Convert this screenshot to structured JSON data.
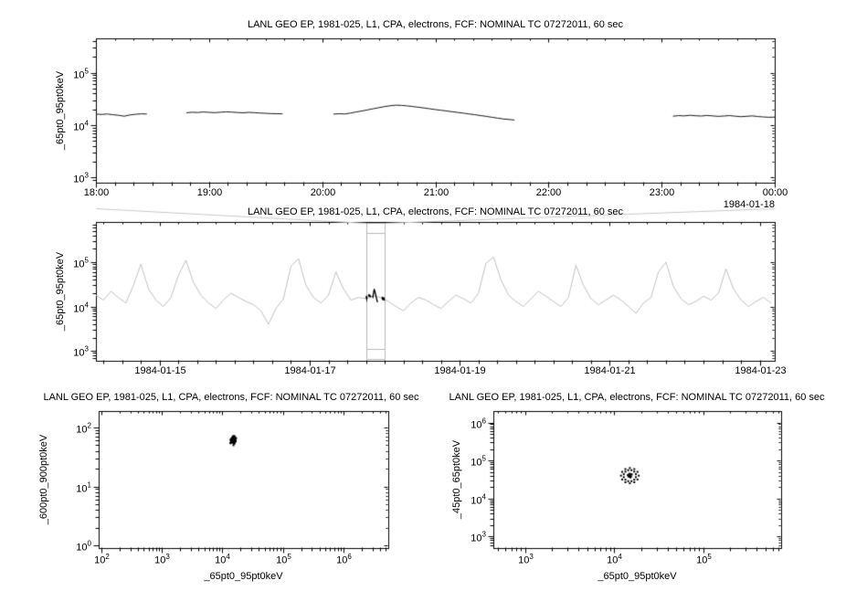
{
  "chart_data": [
    {
      "type": "line",
      "title": "LANL GEO EP, 1981-025, L1, CPA, electrons, FCF: NOMINAL TC 07272011, 60 sec",
      "ylabel": "_65pt0_95pt0keV",
      "corner_label": "1984-01-18",
      "line_color": "#161616",
      "x_axis": {
        "scale": "linear",
        "min": 18,
        "max": 24,
        "minor_step": 0.1666667,
        "ticks": [
          {
            "v": 18,
            "label": "18:00"
          },
          {
            "v": 19,
            "label": "19:00"
          },
          {
            "v": 20,
            "label": "20:00"
          },
          {
            "v": 21,
            "label": "21:00"
          },
          {
            "v": 22,
            "label": "22:00"
          },
          {
            "v": 23,
            "label": "23:00"
          },
          {
            "v": 24,
            "label": "00:00"
          }
        ]
      },
      "y_axis": {
        "scale": "log",
        "min": 800,
        "max": 450000,
        "tick_exps": [
          3,
          4,
          5
        ]
      },
      "segments": [
        [
          [
            18.0,
            16200
          ],
          [
            18.05,
            16000
          ],
          [
            18.1,
            16300
          ],
          [
            18.15,
            15800
          ],
          [
            18.2,
            15400
          ],
          [
            18.25,
            14800
          ],
          [
            18.3,
            15600
          ],
          [
            18.35,
            16100
          ],
          [
            18.4,
            16400
          ],
          [
            18.45,
            16300
          ]
        ],
        [
          [
            18.8,
            17200
          ],
          [
            18.85,
            17600
          ],
          [
            18.9,
            17400
          ],
          [
            18.95,
            17800
          ],
          [
            19.0,
            17500
          ],
          [
            19.05,
            17300
          ],
          [
            19.1,
            17600
          ],
          [
            19.15,
            17900
          ],
          [
            19.2,
            17700
          ],
          [
            19.25,
            17400
          ],
          [
            19.3,
            17200
          ],
          [
            19.35,
            17500
          ],
          [
            19.4,
            17300
          ],
          [
            19.45,
            17000
          ],
          [
            19.5,
            16800
          ],
          [
            19.55,
            16600
          ],
          [
            19.6,
            16500
          ],
          [
            19.65,
            16400
          ]
        ],
        [
          [
            20.1,
            16200
          ],
          [
            20.15,
            16500
          ],
          [
            20.2,
            16300
          ],
          [
            20.25,
            17000
          ],
          [
            20.3,
            17800
          ],
          [
            20.35,
            18600
          ],
          [
            20.4,
            19500
          ],
          [
            20.45,
            20500
          ],
          [
            20.5,
            21500
          ],
          [
            20.55,
            22500
          ],
          [
            20.6,
            23400
          ],
          [
            20.65,
            24000
          ],
          [
            20.7,
            23800
          ],
          [
            20.75,
            23300
          ],
          [
            20.8,
            22600
          ],
          [
            20.85,
            21900
          ],
          [
            20.9,
            21200
          ],
          [
            20.95,
            20500
          ],
          [
            21.0,
            19800
          ],
          [
            21.05,
            19200
          ],
          [
            21.1,
            18600
          ],
          [
            21.15,
            18000
          ],
          [
            21.2,
            17400
          ],
          [
            21.25,
            16900
          ],
          [
            21.3,
            16300
          ],
          [
            21.35,
            15800
          ],
          [
            21.4,
            15200
          ],
          [
            21.45,
            14700
          ],
          [
            21.5,
            14100
          ],
          [
            21.55,
            13600
          ],
          [
            21.6,
            13100
          ],
          [
            21.65,
            12800
          ],
          [
            21.7,
            12500
          ]
        ],
        [
          [
            23.1,
            14800
          ],
          [
            23.15,
            15200
          ],
          [
            23.2,
            15000
          ],
          [
            23.25,
            15400
          ],
          [
            23.3,
            15100
          ],
          [
            23.35,
            14900
          ],
          [
            23.4,
            15300
          ],
          [
            23.45,
            15000
          ],
          [
            23.5,
            14700
          ],
          [
            23.55,
            14900
          ],
          [
            23.6,
            15200
          ],
          [
            23.65,
            14800
          ],
          [
            23.7,
            14500
          ],
          [
            23.75,
            14700
          ],
          [
            23.8,
            15000
          ],
          [
            23.85,
            14600
          ],
          [
            23.9,
            14300
          ],
          [
            23.95,
            14100
          ],
          [
            24.0,
            14200
          ]
        ]
      ]
    },
    {
      "type": "line",
      "title": "LANL GEO EP, 1981-025, L1, CPA, electrons, FCF: NOMINAL TC 07272011, 60 sec",
      "ylabel": "_65pt0_95pt0keV",
      "line_color": "#c0c0c0",
      "x_axis": {
        "scale": "linear",
        "min": 0.15,
        "max": 9.2,
        "minor_step": 0.25,
        "ticks": [
          {
            "v": 1,
            "label": "1984-01-15"
          },
          {
            "v": 3,
            "label": "1984-01-17"
          },
          {
            "v": 5,
            "label": "1984-01-19"
          },
          {
            "v": 7,
            "label": "1984-01-21"
          },
          {
            "v": 9,
            "label": "1984-01-23"
          }
        ]
      },
      "y_axis": {
        "scale": "log",
        "min": 600,
        "max": 800000,
        "tick_exps": [
          3,
          4,
          5
        ]
      },
      "x0": 0.15,
      "dx": 0.1,
      "values": [
        18000,
        14000,
        22000,
        16000,
        12000,
        30000,
        90000,
        25000,
        14000,
        10000,
        16000,
        50000,
        110000,
        35000,
        18000,
        12000,
        9000,
        14000,
        20000,
        16000,
        13000,
        11000,
        8000,
        4000,
        9000,
        15000,
        80000,
        120000,
        30000,
        16000,
        12000,
        18000,
        60000,
        25000,
        14000,
        16000,
        15000,
        17000,
        16000,
        13000,
        10000,
        8000,
        12000,
        16000,
        14000,
        11000,
        9000,
        13000,
        18000,
        15000,
        12000,
        20000,
        95000,
        130000,
        40000,
        18000,
        13000,
        10000,
        15000,
        22000,
        17000,
        13000,
        10000,
        16000,
        85000,
        30000,
        15000,
        11000,
        14000,
        18000,
        14000,
        10000,
        7000,
        12000,
        16000,
        60000,
        100000,
        28000,
        15000,
        11000,
        13000,
        17000,
        14000,
        20000,
        70000,
        25000,
        14000,
        10000,
        13000,
        16000,
        12000
      ],
      "highlight": {
        "color": "#000000",
        "source": 0,
        "hour_to_day_offset": 3.0
      },
      "zoom_box": {
        "x1": 3.75,
        "x2": 4.0,
        "color": "#b8b8b8"
      },
      "connector_color": "#c8c8c8"
    },
    {
      "type": "scatter",
      "title": "LANL GEO EP, 1981-025, L1, CPA, electrons, FCF: NOMINAL TC 07272011, 60 sec",
      "ylabel": "_600pt0_900pt0keV",
      "xlabel": "_65pt0_95pt0keV",
      "marker_color": "#000000",
      "x_axis": {
        "scale": "log",
        "min": 90,
        "max": 5500000,
        "tick_exps": [
          2,
          3,
          4,
          5,
          6
        ]
      },
      "y_axis": {
        "scale": "log",
        "min": 0.9,
        "max": 190,
        "tick_exps": [
          0,
          1,
          2
        ]
      },
      "points": [
        [
          14000,
          62
        ],
        [
          15000,
          58
        ],
        [
          16000,
          65
        ],
        [
          13500,
          55
        ],
        [
          14800,
          68
        ],
        [
          15500,
          60
        ],
        [
          16200,
          63
        ],
        [
          14200,
          57
        ],
        [
          15800,
          70
        ],
        [
          15100,
          64
        ],
        [
          13900,
          59
        ],
        [
          16800,
          66
        ],
        [
          14500,
          56
        ],
        [
          15300,
          61
        ],
        [
          16000,
          59
        ],
        [
          14900,
          67
        ],
        [
          15600,
          72
        ],
        [
          13700,
          54
        ],
        [
          16400,
          62
        ],
        [
          15200,
          58
        ],
        [
          14100,
          65
        ],
        [
          15900,
          60
        ],
        [
          15000,
          55
        ],
        [
          14600,
          63
        ],
        [
          16100,
          69
        ],
        [
          13800,
          61
        ],
        [
          15400,
          53
        ],
        [
          16600,
          58
        ],
        [
          14300,
          64
        ],
        [
          15700,
          66
        ],
        [
          14700,
          57
        ],
        [
          15100,
          68
        ],
        [
          16300,
          60
        ],
        [
          14000,
          59
        ],
        [
          15500,
          56
        ],
        [
          14900,
          71
        ],
        [
          13600,
          62
        ],
        [
          16000,
          54
        ],
        [
          15200,
          50
        ],
        [
          14400,
          67
        ]
      ]
    },
    {
      "type": "scatter",
      "title": "LANL GEO EP, 1981-025, L1, CPA, electrons, FCF: NOMINAL TC 07272011, 60 sec",
      "ylabel": "_45pt0_65pt0keV",
      "xlabel": "_65pt0_95pt0keV",
      "marker_color": "#000000",
      "x_axis": {
        "scale": "log",
        "min": 440,
        "max": 750000,
        "tick_exps": [
          3,
          4,
          5
        ]
      },
      "y_axis": {
        "scale": "log",
        "min": 500,
        "max": 2000000,
        "tick_exps": [
          3,
          4,
          5,
          6
        ]
      },
      "points": [
        [
          18900,
          40000
        ],
        [
          18300,
          50350
        ],
        [
          16830,
          59570
        ],
        [
          15000,
          63400
        ],
        [
          13370,
          59570
        ],
        [
          12290,
          50350
        ],
        [
          11920,
          40000
        ],
        [
          12290,
          31770
        ],
        [
          13370,
          26850
        ],
        [
          15000,
          25230
        ],
        [
          16830,
          26850
        ],
        [
          18300,
          31770
        ],
        [
          17530,
          43730
        ],
        [
          16810,
          51060
        ],
        [
          15640,
          55840
        ],
        [
          14380,
          55840
        ],
        [
          13380,
          51060
        ],
        [
          12836,
          43730
        ],
        [
          12836,
          36590
        ],
        [
          13380,
          31330
        ],
        [
          14380,
          28650
        ],
        [
          15640,
          28650
        ],
        [
          16810,
          31330
        ],
        [
          17530,
          36590
        ],
        [
          15000,
          40000
        ],
        [
          14500,
          42000
        ],
        [
          15500,
          38000
        ],
        [
          14800,
          45000
        ],
        [
          15200,
          36000
        ],
        [
          14200,
          41000
        ],
        [
          15800,
          43000
        ],
        [
          15100,
          39000
        ],
        [
          14600,
          37500
        ],
        [
          15400,
          44000
        ]
      ]
    }
  ]
}
